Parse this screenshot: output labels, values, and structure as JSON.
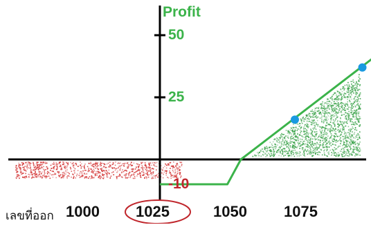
{
  "chart_data": {
    "type": "line",
    "ylabel": "Profit",
    "xlabel": "เลขที่ออก",
    "x_ticks": [
      "1000",
      "1025",
      "1050",
      "1075"
    ],
    "highlighted_x_tick": "1025",
    "y_ticks": [
      {
        "label": "50",
        "value": 50
      },
      {
        "label": "25",
        "value": 25
      },
      {
        "label": "-10",
        "value": -10
      }
    ],
    "ylim": [
      -14,
      60
    ],
    "xlim": [
      1000,
      1090
    ],
    "series": [
      {
        "x": [
          1000,
          1025,
          1030,
          1090
        ],
        "y": [
          -10,
          -10,
          0,
          50
        ]
      }
    ],
    "points": [
      {
        "x": 1050,
        "y": 16
      },
      {
        "x": 1075,
        "y": 37
      }
    ],
    "loss_region_color": "#d23030",
    "profit_region_color": "#2e9c3e",
    "line_color": "#3bb34a",
    "point_color": "#1a9ae0",
    "highlight_color": "#c0262c",
    "grid": false
  }
}
